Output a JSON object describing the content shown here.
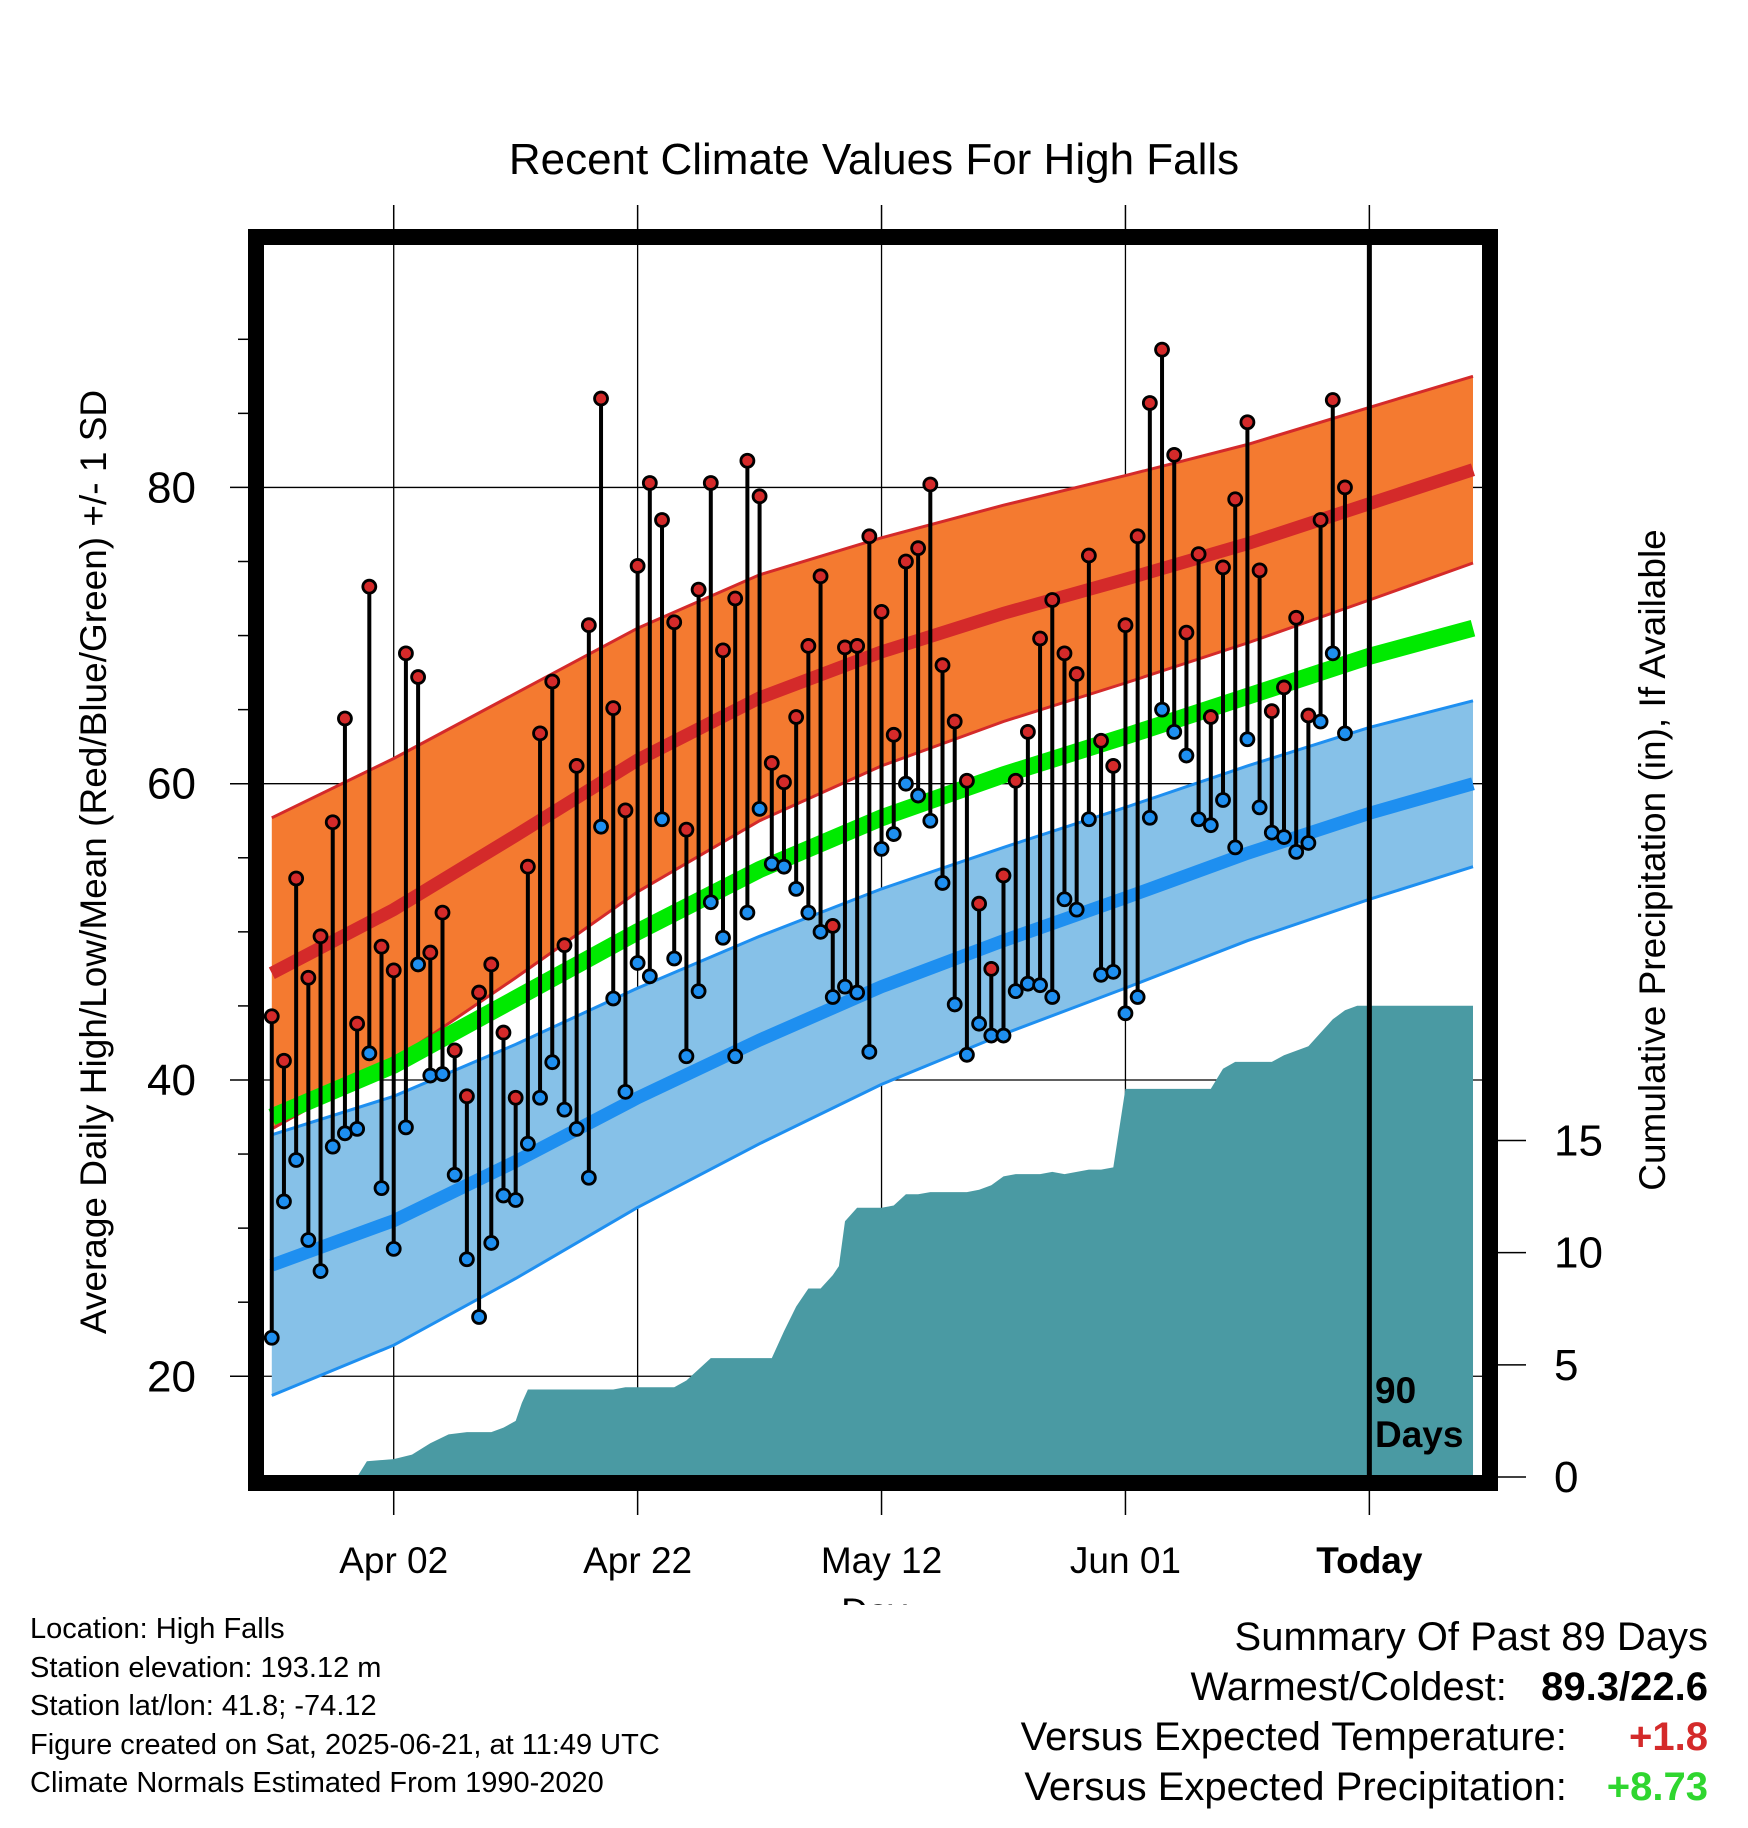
{
  "title": "Recent Climate Values For High Falls",
  "colors": {
    "high_band": "#f47a30",
    "high_line": "#d42a2a",
    "low_band": "#86c1e8",
    "low_line": "#1e8ff0",
    "mean_line": "#00ea00",
    "precip": "#4a9aa3",
    "positive_temp": "#d42a2a",
    "positive_precip": "#2fd62f"
  },
  "chart_data": {
    "type": "line",
    "title": "Recent Climate Values For High Falls",
    "xlabel": "Day",
    "ylabel_left": "Average Daily High/Low/Mean (Red/Blue/Green) +/- 1 SD",
    "ylabel_right": "Cumulative Precipitation (in), If Available",
    "x_tick_labels": [
      "Apr 02",
      "Apr 22",
      "May 12",
      "Jun 01",
      "Today"
    ],
    "x_tick_days": [
      10,
      30,
      50,
      70,
      90
    ],
    "xlim": [
      -0.8,
      99.4
    ],
    "ylim_left": [
      13.2,
      96.5
    ],
    "yticks_left": [
      20,
      40,
      60,
      80
    ],
    "ylim_right": [
      0,
      55
    ],
    "yticks_right": [
      0,
      5,
      10,
      15
    ],
    "today_marker": {
      "day": 90,
      "label_line1": "90",
      "label_line2": "Days"
    },
    "grid": true,
    "normals": {
      "x": [
        0,
        10,
        20,
        30,
        40,
        50,
        60,
        70,
        80,
        90,
        98.5
      ],
      "high_mean": [
        47.2,
        51.5,
        56.5,
        61.6,
        65.8,
        68.9,
        71.5,
        73.8,
        76.2,
        78.9,
        81.2
      ],
      "high_sd": [
        10.5,
        10.2,
        9.6,
        8.9,
        8.3,
        7.7,
        7.3,
        7.0,
        6.7,
        6.5,
        6.3
      ],
      "low_mean": [
        27.5,
        30.5,
        34.5,
        38.8,
        42.7,
        46.3,
        49.4,
        52.3,
        55.3,
        58.0,
        60.0
      ],
      "low_sd": [
        8.8,
        8.4,
        7.9,
        7.4,
        7.0,
        6.6,
        6.3,
        6.1,
        5.9,
        5.8,
        5.6
      ],
      "mean": [
        37.5,
        41.0,
        45.5,
        50.0,
        54.2,
        57.7,
        60.6,
        63.2,
        65.9,
        68.6,
        70.5
      ]
    },
    "daily": {
      "high": [
        44.3,
        41.3,
        53.6,
        46.9,
        49.7,
        57.4,
        64.4,
        43.8,
        73.3,
        49.0,
        47.4,
        68.8,
        67.2,
        48.6,
        51.3,
        42.0,
        38.9,
        45.9,
        47.8,
        43.2,
        38.8,
        54.4,
        63.4,
        66.9,
        49.1,
        61.2,
        70.7,
        86.0,
        65.1,
        58.2,
        74.7,
        80.3,
        77.8,
        70.9,
        56.9,
        73.1,
        80.3,
        69.0,
        72.5,
        81.8,
        79.4,
        61.4,
        60.1,
        64.5,
        69.3,
        74.0,
        50.4,
        69.2,
        69.3,
        76.7,
        71.6,
        63.3,
        75.0,
        75.9,
        80.2,
        68.0,
        64.2,
        60.2,
        51.9,
        47.5,
        53.8,
        60.2,
        63.5,
        69.8,
        72.4,
        68.8,
        67.4,
        75.4,
        62.9,
        61.2,
        70.7,
        76.7,
        85.7,
        89.3,
        82.2,
        70.2,
        75.5,
        64.5,
        74.6,
        79.2,
        84.4,
        74.4,
        64.9,
        66.5,
        71.2,
        64.6,
        77.8,
        85.9,
        80.0
      ],
      "low": [
        22.6,
        31.8,
        34.6,
        29.2,
        27.1,
        35.5,
        36.4,
        36.7,
        41.8,
        32.7,
        28.6,
        36.8,
        47.8,
        40.3,
        40.4,
        33.6,
        27.9,
        24.0,
        29.0,
        32.2,
        31.9,
        35.7,
        38.8,
        41.2,
        38.0,
        36.7,
        33.4,
        57.1,
        45.5,
        39.2,
        47.9,
        47.0,
        57.6,
        48.2,
        41.6,
        46.0,
        52.0,
        49.6,
        41.6,
        51.3,
        58.3,
        54.6,
        54.4,
        52.9,
        51.3,
        50.0,
        45.6,
        46.3,
        45.9,
        41.9,
        55.6,
        56.6,
        60.0,
        59.2,
        57.5,
        53.3,
        45.1,
        41.7,
        43.8,
        43.0,
        43.0,
        46.0,
        46.5,
        46.4,
        45.6,
        52.2,
        51.5,
        57.6,
        47.1,
        47.3,
        44.5,
        45.6,
        57.7,
        65.0,
        63.5,
        61.9,
        57.6,
        57.2,
        58.9,
        55.7,
        63.0,
        58.4,
        56.7,
        56.4,
        55.4,
        56.0,
        64.2,
        68.8,
        63.4
      ]
    },
    "precip_cumulative": {
      "x": [
        0,
        7,
        7.8,
        10,
        11.5,
        13,
        14.5,
        16,
        18,
        19,
        20,
        20.5,
        21,
        22,
        24,
        26,
        28,
        29,
        30,
        32,
        33,
        34,
        36,
        38,
        40,
        41,
        42,
        43,
        44,
        45,
        46,
        46.5,
        47,
        48,
        49,
        50,
        51,
        52,
        53,
        54,
        55,
        56,
        57,
        58,
        59,
        60,
        61,
        62,
        63,
        64,
        65,
        66,
        67,
        68,
        69,
        70,
        71,
        72,
        73,
        74,
        75,
        76,
        77,
        78,
        79,
        80,
        81,
        82,
        83,
        84,
        85,
        86,
        87,
        88,
        89,
        90,
        98.5
      ],
      "y": [
        0,
        0,
        0.7,
        0.8,
        1.0,
        1.5,
        1.9,
        2.0,
        2.0,
        2.2,
        2.5,
        3.3,
        3.9,
        3.9,
        3.9,
        3.9,
        3.9,
        4.0,
        4.0,
        4.0,
        4.0,
        4.3,
        5.3,
        5.3,
        5.3,
        5.3,
        6.5,
        7.6,
        8.4,
        8.4,
        9.0,
        9.4,
        11.4,
        12.0,
        12.0,
        12.0,
        12.1,
        12.6,
        12.6,
        12.7,
        12.7,
        12.7,
        12.7,
        12.8,
        13.0,
        13.4,
        13.5,
        13.5,
        13.5,
        13.6,
        13.5,
        13.6,
        13.7,
        13.7,
        13.8,
        17.3,
        17.3,
        17.3,
        17.3,
        17.3,
        17.3,
        17.3,
        17.3,
        18.2,
        18.5,
        18.5,
        18.5,
        18.5,
        18.8,
        19.0,
        19.2,
        19.8,
        20.4,
        20.8,
        21.0,
        21.0,
        21.0
      ]
    }
  },
  "location_info": {
    "location": "Location: High Falls",
    "elevation": "Station elevation: 193.12 m",
    "latlon": "Station lat/lon: 41.8; -74.12",
    "created": "Figure created on Sat, 2025-06-21, at 11:49 UTC",
    "normals": "Climate Normals Estimated From 1990-2020"
  },
  "summary": {
    "title": "Summary Of Past 89 Days",
    "warmest_label": "Warmest/Coldest:",
    "warmest_value": "89.3/22.6",
    "temp_label": "Versus Expected Temperature:",
    "temp_value": "+1.8",
    "precip_label": "Versus Expected Precipitation:",
    "precip_value": "+8.73"
  }
}
